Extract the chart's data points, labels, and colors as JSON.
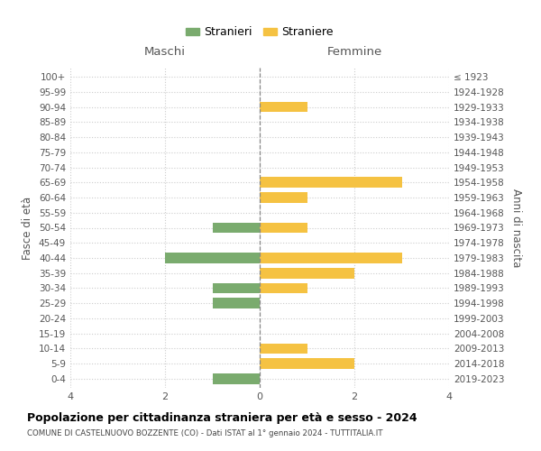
{
  "age_groups": [
    "100+",
    "95-99",
    "90-94",
    "85-89",
    "80-84",
    "75-79",
    "70-74",
    "65-69",
    "60-64",
    "55-59",
    "50-54",
    "45-49",
    "40-44",
    "35-39",
    "30-34",
    "25-29",
    "20-24",
    "15-19",
    "10-14",
    "5-9",
    "0-4"
  ],
  "birth_years": [
    "≤ 1923",
    "1924-1928",
    "1929-1933",
    "1934-1938",
    "1939-1943",
    "1944-1948",
    "1949-1953",
    "1954-1958",
    "1959-1963",
    "1964-1968",
    "1969-1973",
    "1974-1978",
    "1979-1983",
    "1984-1988",
    "1989-1993",
    "1994-1998",
    "1999-2003",
    "2004-2008",
    "2009-2013",
    "2014-2018",
    "2019-2023"
  ],
  "maschi_stranieri": [
    0,
    0,
    0,
    0,
    0,
    0,
    0,
    0,
    0,
    0,
    1,
    0,
    2,
    0,
    1,
    1,
    0,
    0,
    0,
    0,
    1
  ],
  "femmine_straniere": [
    0,
    0,
    1,
    0,
    0,
    0,
    0,
    3,
    1,
    0,
    1,
    0,
    3,
    2,
    1,
    0,
    0,
    0,
    1,
    2,
    0
  ],
  "color_maschi": "#7aab6e",
  "color_femmine": "#f5c242",
  "xlim": 4,
  "title": "Popolazione per cittadinanza straniera per età e sesso - 2024",
  "subtitle": "COMUNE DI CASTELNUOVO BOZZENTE (CO) - Dati ISTAT al 1° gennaio 2024 - TUTTITALIA.IT",
  "ylabel_left": "Fasce di età",
  "ylabel_right": "Anni di nascita",
  "legend_stranieri": "Stranieri",
  "legend_straniere": "Straniere",
  "label_maschi": "Maschi",
  "label_femmine": "Femmine",
  "bg_color": "#ffffff",
  "grid_color": "#cccccc",
  "bar_height": 0.7
}
